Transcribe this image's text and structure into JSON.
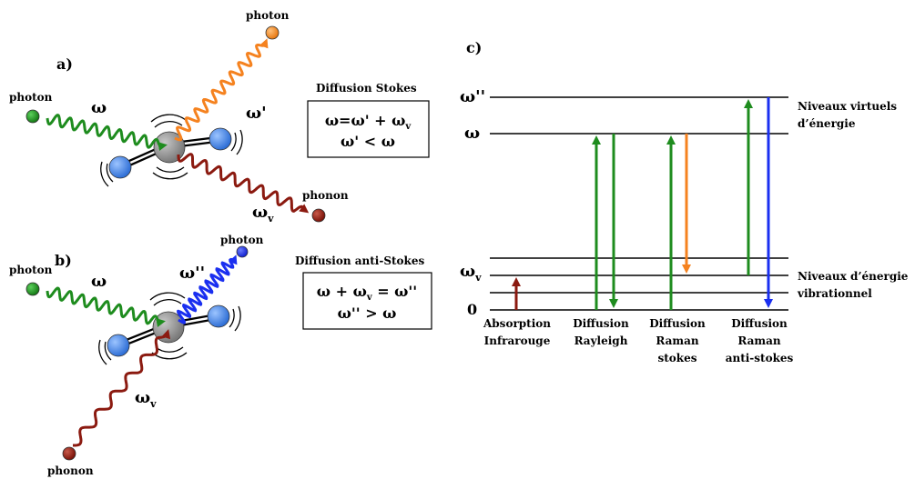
{
  "panel_a": {
    "label": "a)",
    "photon_in": "photon",
    "photon_out": "photon",
    "phonon": "phonon",
    "omega": "ω",
    "omega_prime": "ω'",
    "omega_v_base": "ω",
    "omega_v_sub": "v",
    "box_title": "Diffusion Stokes",
    "eq1_left": "ω=ω' + ω",
    "eq1_sub": "v",
    "eq2": "ω' < ω"
  },
  "panel_b": {
    "label": "b)",
    "photon_in": "photon",
    "photon_out": "photon",
    "phonon": "phonon",
    "omega": "ω",
    "omega_dprime": "ω''",
    "omega_v_base": "ω",
    "omega_v_sub": "v",
    "box_title": "Diffusion anti-Stokes",
    "eq1_a": "ω + ω",
    "eq1_sub": "v",
    "eq1_b": " = ω''",
    "eq2": "ω'' > ω"
  },
  "panel_c": {
    "label": "c)",
    "level_virtual2": "ω''",
    "level_virtual1": "ω",
    "level_v_base": "ω",
    "level_v_sub": "v",
    "level_zero": "0",
    "virtual_note_1": "Niveaux virtuels",
    "virtual_note_2": "d’énergie",
    "vib_note_1": "Niveaux d’énergie",
    "vib_note_2": "vibrationnel",
    "processes": [
      {
        "lines": [
          "Absorption",
          "Infrarouge"
        ],
        "color": "#8b1a10"
      },
      {
        "lines": [
          "Diffusion",
          "Rayleigh"
        ],
        "color": "#1e8c1e"
      },
      {
        "lines": [
          "Diffusion",
          "Raman",
          "stokes"
        ],
        "color": "#f5821f"
      },
      {
        "lines": [
          "Diffusion",
          "Raman",
          "anti-stokes"
        ],
        "color": "#1a2ff0"
      }
    ]
  },
  "colors": {
    "green": "#1e8c1e",
    "orange": "#f5821f",
    "darkred": "#8b1a10",
    "blue": "#1a2ff0",
    "atom_blue": "#3a7de0",
    "atom_gray": "#8c8c8c"
  }
}
